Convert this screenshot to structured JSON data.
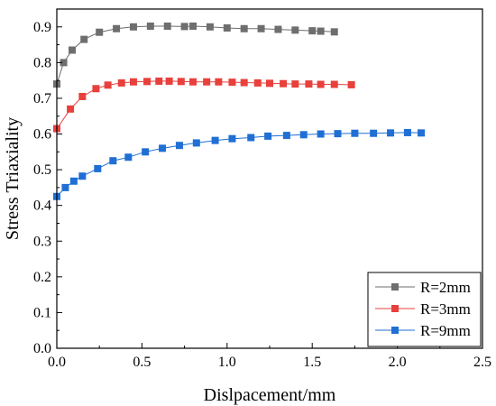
{
  "chart_data": {
    "type": "line",
    "title": "",
    "xlabel": "Dislpacement/mm",
    "ylabel": "Stress Triaxiality",
    "xlim": [
      0.0,
      2.5
    ],
    "ylim": [
      0.0,
      0.95
    ],
    "x_ticks": [
      "0.0",
      "0.5",
      "1.0",
      "1.5",
      "2.0",
      "2.5"
    ],
    "y_ticks": [
      "0.0",
      "0.1",
      "0.2",
      "0.3",
      "0.4",
      "0.5",
      "0.6",
      "0.7",
      "0.8",
      "0.9"
    ],
    "grid": false,
    "legend_position": "bottom-right",
    "series": [
      {
        "name": "R=2mm",
        "color": "#6e6e6e",
        "marker": "square",
        "x": [
          0.0,
          0.04,
          0.09,
          0.16,
          0.25,
          0.35,
          0.45,
          0.55,
          0.65,
          0.75,
          0.8,
          0.9,
          1.0,
          1.1,
          1.2,
          1.3,
          1.4,
          1.5,
          1.55,
          1.63
        ],
        "y": [
          0.74,
          0.8,
          0.835,
          0.865,
          0.885,
          0.895,
          0.9,
          0.902,
          0.902,
          0.901,
          0.902,
          0.9,
          0.897,
          0.895,
          0.895,
          0.893,
          0.891,
          0.889,
          0.888,
          0.886
        ]
      },
      {
        "name": "R=3mm",
        "color": "#e8403c",
        "marker": "square",
        "x": [
          0.0,
          0.08,
          0.15,
          0.23,
          0.3,
          0.38,
          0.45,
          0.53,
          0.6,
          0.66,
          0.73,
          0.8,
          0.88,
          0.95,
          1.03,
          1.1,
          1.18,
          1.25,
          1.33,
          1.4,
          1.48,
          1.55,
          1.63,
          1.73
        ],
        "y": [
          0.615,
          0.67,
          0.705,
          0.727,
          0.737,
          0.743,
          0.746,
          0.747,
          0.748,
          0.748,
          0.747,
          0.746,
          0.746,
          0.746,
          0.745,
          0.744,
          0.743,
          0.742,
          0.741,
          0.74,
          0.74,
          0.739,
          0.739,
          0.738
        ]
      },
      {
        "name": "R=9mm",
        "color": "#1f6fd4",
        "marker": "square",
        "x": [
          0.0,
          0.05,
          0.1,
          0.15,
          0.24,
          0.33,
          0.42,
          0.52,
          0.62,
          0.72,
          0.82,
          0.93,
          1.03,
          1.14,
          1.24,
          1.35,
          1.45,
          1.55,
          1.65,
          1.75,
          1.86,
          1.96,
          2.06,
          2.14
        ],
        "y": [
          0.425,
          0.45,
          0.468,
          0.482,
          0.503,
          0.525,
          0.535,
          0.55,
          0.56,
          0.568,
          0.575,
          0.582,
          0.587,
          0.59,
          0.594,
          0.596,
          0.598,
          0.6,
          0.601,
          0.602,
          0.602,
          0.603,
          0.604,
          0.603
        ]
      }
    ]
  }
}
